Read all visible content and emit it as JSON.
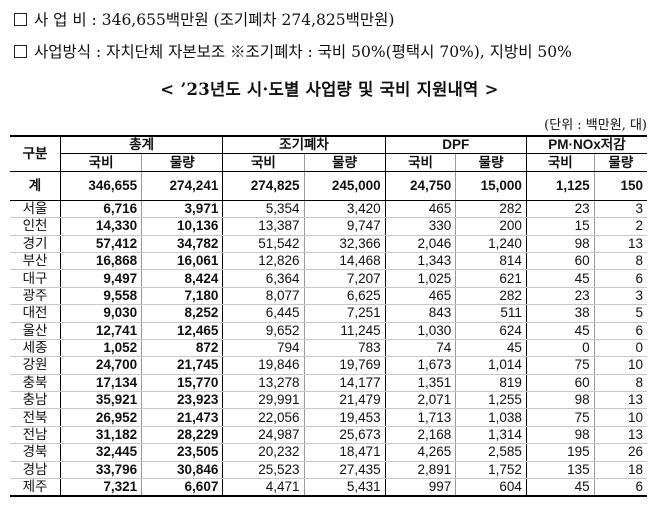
{
  "line1": {
    "label": "사 업 비 : ",
    "value": "346,655백만원 (조기폐차 274,825백만원)"
  },
  "line2": {
    "label": "사업방식 : ",
    "value": "자치단체 자본보조 ※조기폐차 : 국비 50%(평택시 70%), 지방비 50%"
  },
  "title": "< ’23년도 시·도별 사업량 및 국비 지원내역 >",
  "unit": "(단위 : 백만원, 대)",
  "table": {
    "row_header": "구분",
    "groups": [
      "총계",
      "조기폐차",
      "DPF",
      "PM·NOx저감"
    ],
    "sub": [
      "국비",
      "물량"
    ],
    "total": {
      "name": "계",
      "values": [
        "346,655",
        "274,241",
        "274,825",
        "245,000",
        "24,750",
        "15,000",
        "1,125",
        "150"
      ]
    },
    "rows": [
      {
        "name": "서울",
        "values": [
          "6,716",
          "3,971",
          "5,354",
          "3,420",
          "465",
          "282",
          "23",
          "3"
        ]
      },
      {
        "name": "인천",
        "values": [
          "14,330",
          "10,136",
          "13,387",
          "9,747",
          "330",
          "200",
          "15",
          "2"
        ]
      },
      {
        "name": "경기",
        "values": [
          "57,412",
          "34,782",
          "51,542",
          "32,366",
          "2,046",
          "1,240",
          "98",
          "13"
        ]
      },
      {
        "name": "부산",
        "values": [
          "16,868",
          "16,061",
          "12,826",
          "14,468",
          "1,343",
          "814",
          "60",
          "8"
        ]
      },
      {
        "name": "대구",
        "values": [
          "9,497",
          "8,424",
          "6,364",
          "7,207",
          "1,025",
          "621",
          "45",
          "6"
        ]
      },
      {
        "name": "광주",
        "values": [
          "9,558",
          "7,180",
          "8,077",
          "6,625",
          "465",
          "282",
          "23",
          "3"
        ]
      },
      {
        "name": "대전",
        "values": [
          "9,030",
          "8,252",
          "6,445",
          "7,251",
          "843",
          "511",
          "38",
          "5"
        ]
      },
      {
        "name": "울산",
        "values": [
          "12,741",
          "12,465",
          "9,652",
          "11,245",
          "1,030",
          "624",
          "45",
          "6"
        ]
      },
      {
        "name": "세종",
        "values": [
          "1,052",
          "872",
          "794",
          "783",
          "74",
          "45",
          "0",
          "0"
        ]
      },
      {
        "name": "강원",
        "values": [
          "24,700",
          "21,745",
          "19,846",
          "19,769",
          "1,673",
          "1,014",
          "75",
          "10"
        ]
      },
      {
        "name": "충북",
        "values": [
          "17,134",
          "15,770",
          "13,278",
          "14,177",
          "1,351",
          "819",
          "60",
          "8"
        ]
      },
      {
        "name": "충남",
        "values": [
          "35,921",
          "23,923",
          "29,991",
          "21,479",
          "2,071",
          "1,255",
          "98",
          "13"
        ]
      },
      {
        "name": "전북",
        "values": [
          "26,952",
          "21,473",
          "22,056",
          "19,453",
          "1,713",
          "1,038",
          "75",
          "10"
        ]
      },
      {
        "name": "전남",
        "values": [
          "31,182",
          "28,229",
          "24,987",
          "25,673",
          "2,168",
          "1,314",
          "98",
          "13"
        ]
      },
      {
        "name": "경북",
        "values": [
          "32,445",
          "23,505",
          "20,232",
          "18,471",
          "4,265",
          "2,585",
          "195",
          "26"
        ]
      },
      {
        "name": "경남",
        "values": [
          "33,796",
          "30,846",
          "25,523",
          "27,435",
          "2,891",
          "1,752",
          "135",
          "18"
        ]
      },
      {
        "name": "제주",
        "values": [
          "7,321",
          "6,607",
          "4,471",
          "5,431",
          "997",
          "604",
          "45",
          "6"
        ]
      }
    ]
  }
}
